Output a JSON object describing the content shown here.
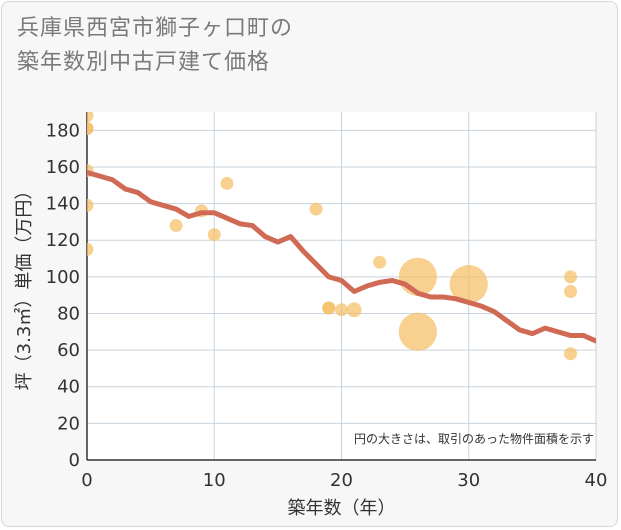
{
  "title": {
    "line1": "兵庫県西宮市獅子ヶ口町の",
    "line2": "築年数別中古戸建て価格"
  },
  "colors": {
    "background": "#f7f7f7",
    "grid": "#c9d3de",
    "bubble": "#f5c06a",
    "line": "#d06a55"
  },
  "chart_data": {
    "type": "scatter",
    "xlabel": "築年数（年）",
    "ylabel": "坪（3.3㎡）単価（万円）",
    "xlim": [
      0,
      40
    ],
    "ylim": [
      0,
      190
    ],
    "xticks": [
      0,
      10,
      20,
      30,
      40
    ],
    "yticks": [
      0,
      20,
      40,
      60,
      80,
      100,
      120,
      140,
      160,
      180
    ],
    "note": "円の大きさは、取引のあった物件面積を示す",
    "points": [
      {
        "x": 0,
        "y": 188,
        "size": 1
      },
      {
        "x": 0,
        "y": 181,
        "size": 1
      },
      {
        "x": 0,
        "y": 181,
        "size": 1
      },
      {
        "x": 0,
        "y": 158,
        "size": 1
      },
      {
        "x": 0,
        "y": 139,
        "size": 1
      },
      {
        "x": 0,
        "y": 115,
        "size": 1
      },
      {
        "x": 7,
        "y": 128,
        "size": 1
      },
      {
        "x": 9,
        "y": 136,
        "size": 1
      },
      {
        "x": 10,
        "y": 123,
        "size": 1
      },
      {
        "x": 11,
        "y": 151,
        "size": 1
      },
      {
        "x": 18,
        "y": 137,
        "size": 1
      },
      {
        "x": 19,
        "y": 83,
        "size": 1
      },
      {
        "x": 19,
        "y": 83,
        "size": 1
      },
      {
        "x": 20,
        "y": 82,
        "size": 1
      },
      {
        "x": 21,
        "y": 82,
        "size": 1.3
      },
      {
        "x": 23,
        "y": 108,
        "size": 1
      },
      {
        "x": 26,
        "y": 100,
        "size": 3
      },
      {
        "x": 26,
        "y": 70,
        "size": 3
      },
      {
        "x": 30,
        "y": 96,
        "size": 3
      },
      {
        "x": 38,
        "y": 100,
        "size": 1
      },
      {
        "x": 38,
        "y": 92,
        "size": 1
      },
      {
        "x": 38,
        "y": 58,
        "size": 1
      }
    ],
    "trend": {
      "x": [
        0,
        1,
        2,
        3,
        4,
        5,
        6,
        7,
        8,
        9,
        10,
        11,
        12,
        13,
        14,
        15,
        16,
        17,
        18,
        19,
        20,
        21,
        22,
        23,
        24,
        25,
        26,
        27,
        28,
        29,
        30,
        31,
        32,
        33,
        34,
        35,
        36,
        37,
        38,
        39,
        40
      ],
      "y": [
        157,
        155,
        153,
        148,
        146,
        141,
        139,
        137,
        133,
        135,
        135,
        132,
        129,
        128,
        122,
        119,
        122,
        114,
        107,
        100,
        98,
        92,
        95,
        97,
        98,
        96,
        91,
        89,
        89,
        88,
        86,
        84,
        81,
        76,
        71,
        69,
        72,
        70,
        68,
        68,
        65
      ]
    }
  }
}
